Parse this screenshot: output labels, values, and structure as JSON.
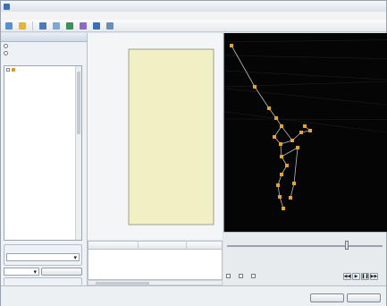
{
  "window": {
    "title": ""
  },
  "menu": {
    "items": []
  },
  "toolbar": {
    "buttons": []
  },
  "left_panel": {
    "header": "",
    "option_a": "",
    "option_b": "",
    "tree": {
      "root": "",
      "children": []
    },
    "group1": {
      "title": "",
      "combo_value": "",
      "combo2_value": "",
      "button": ""
    },
    "group2": {
      "title": "",
      "combo_value": "",
      "button_a": "",
      "button_b": ""
    }
  },
  "chart_data": {
    "type": "line",
    "title": "",
    "xlabel": "",
    "ylabel": "",
    "x": [],
    "series": [],
    "xlim": [
      0,
      1
    ],
    "ylim": [
      0,
      1
    ],
    "grid": false,
    "plot_background": "#f1efc3",
    "line_color": "#8e8e8e"
  },
  "grid": {
    "columns": [],
    "rows": []
  },
  "timeline": {
    "position_fraction": 0.77
  },
  "bottom_controls": {
    "group_label": "",
    "checkboxes": [],
    "player_label": ""
  },
  "wizard": {
    "title": "",
    "subtitle": "",
    "buttons": []
  },
  "colors": {
    "accent": "#3b6fb6",
    "viewport_bg": "#050505",
    "marker": "#e3a52a",
    "plot_bg": "#f1efc3"
  }
}
